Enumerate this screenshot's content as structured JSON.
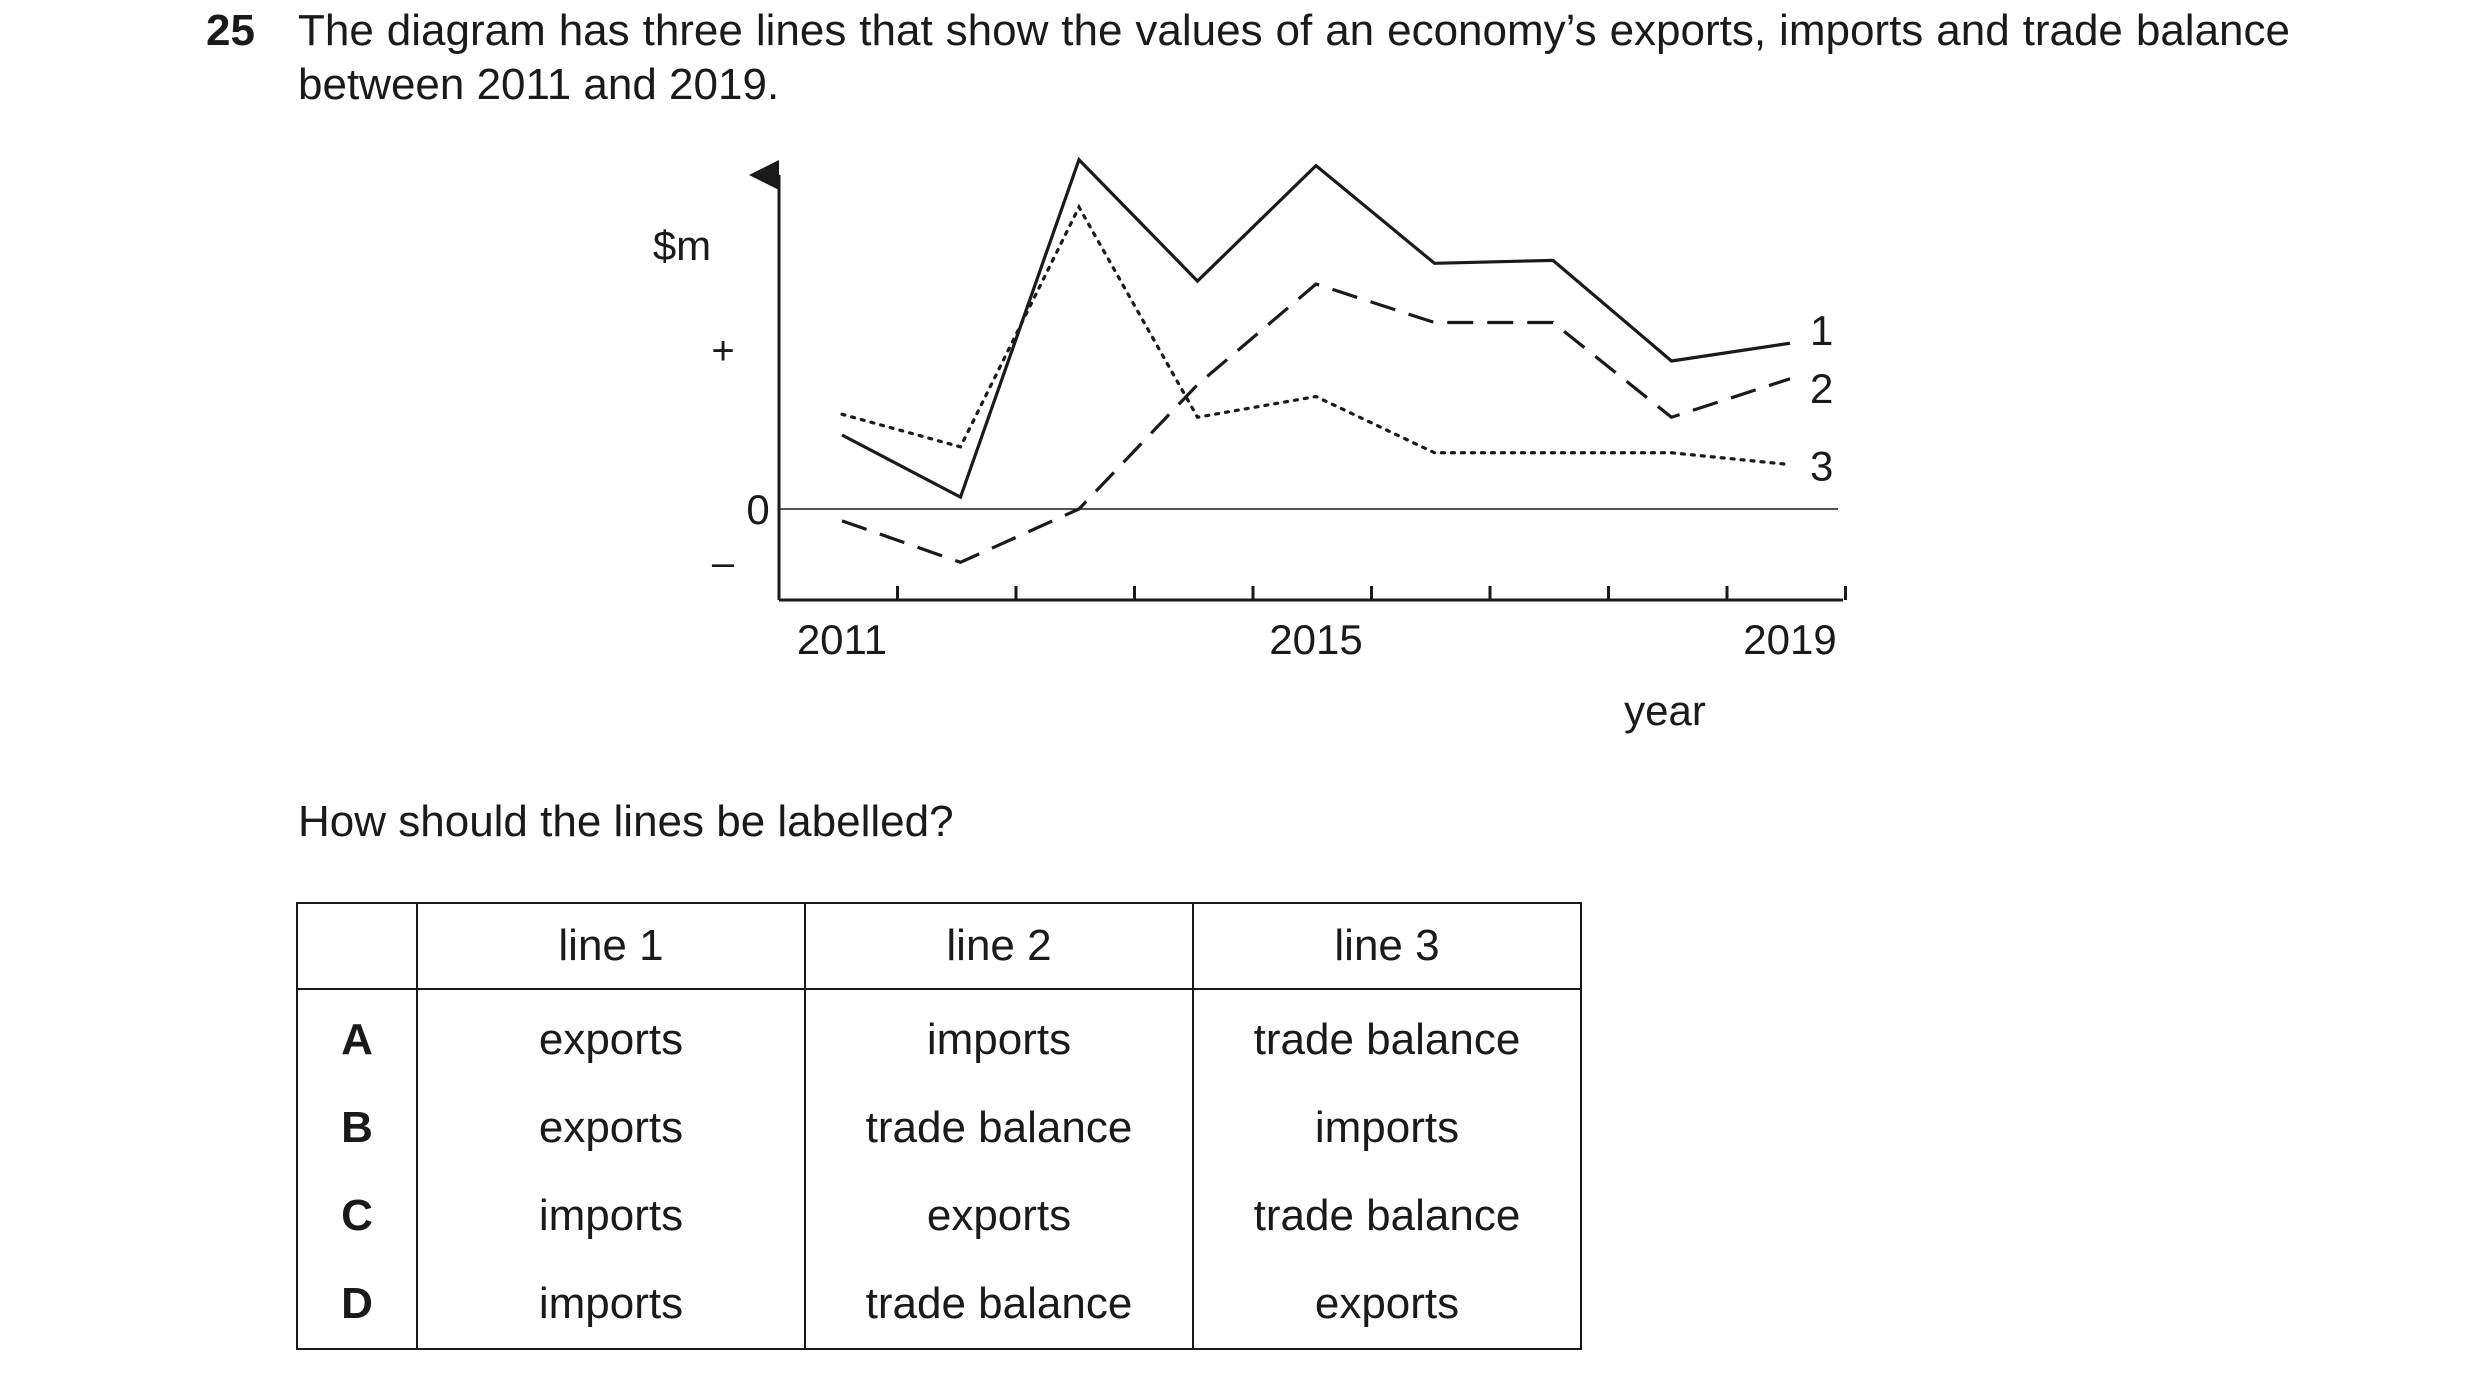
{
  "question": {
    "number": "25",
    "text": "The diagram has three lines that show the values of an economy’s exports, imports and trade balance between 2011 and 2019.",
    "prompt": "How should the lines be labelled?"
  },
  "chart_data": {
    "type": "line",
    "ylabel": "$m",
    "xlabel": "year",
    "y_tick_labels": {
      "plus": "+",
      "zero": "0",
      "minus": "–"
    },
    "x": [
      2011,
      2012,
      2013,
      2014,
      2015,
      2016,
      2017,
      2018,
      2019
    ],
    "x_tick_labels": [
      "2011",
      "2015",
      "2019"
    ],
    "ylim": [
      -3,
      12
    ],
    "series": [
      {
        "name": "1",
        "style": "solid",
        "values": [
          2.5,
          0.4,
          11.8,
          7.7,
          11.6,
          8.3,
          8.4,
          5.0,
          5.6
        ]
      },
      {
        "name": "2",
        "style": "dashed",
        "values": [
          -0.4,
          -1.8,
          0.0,
          4.2,
          7.6,
          6.3,
          6.3,
          3.1,
          4.4
        ]
      },
      {
        "name": "3",
        "style": "dotted",
        "values": [
          3.2,
          2.1,
          10.2,
          3.1,
          3.8,
          1.9,
          1.9,
          1.9,
          1.5
        ]
      }
    ]
  },
  "table": {
    "headers": [
      "",
      "line 1",
      "line 2",
      "line 3"
    ],
    "rows": [
      {
        "key": "A",
        "line1": "exports",
        "line2": "imports",
        "line3": "trade balance"
      },
      {
        "key": "B",
        "line1": "exports",
        "line2": "trade balance",
        "line3": "imports"
      },
      {
        "key": "C",
        "line1": "imports",
        "line2": "exports",
        "line3": "trade balance"
      },
      {
        "key": "D",
        "line1": "imports",
        "line2": "trade balance",
        "line3": "exports"
      }
    ]
  }
}
